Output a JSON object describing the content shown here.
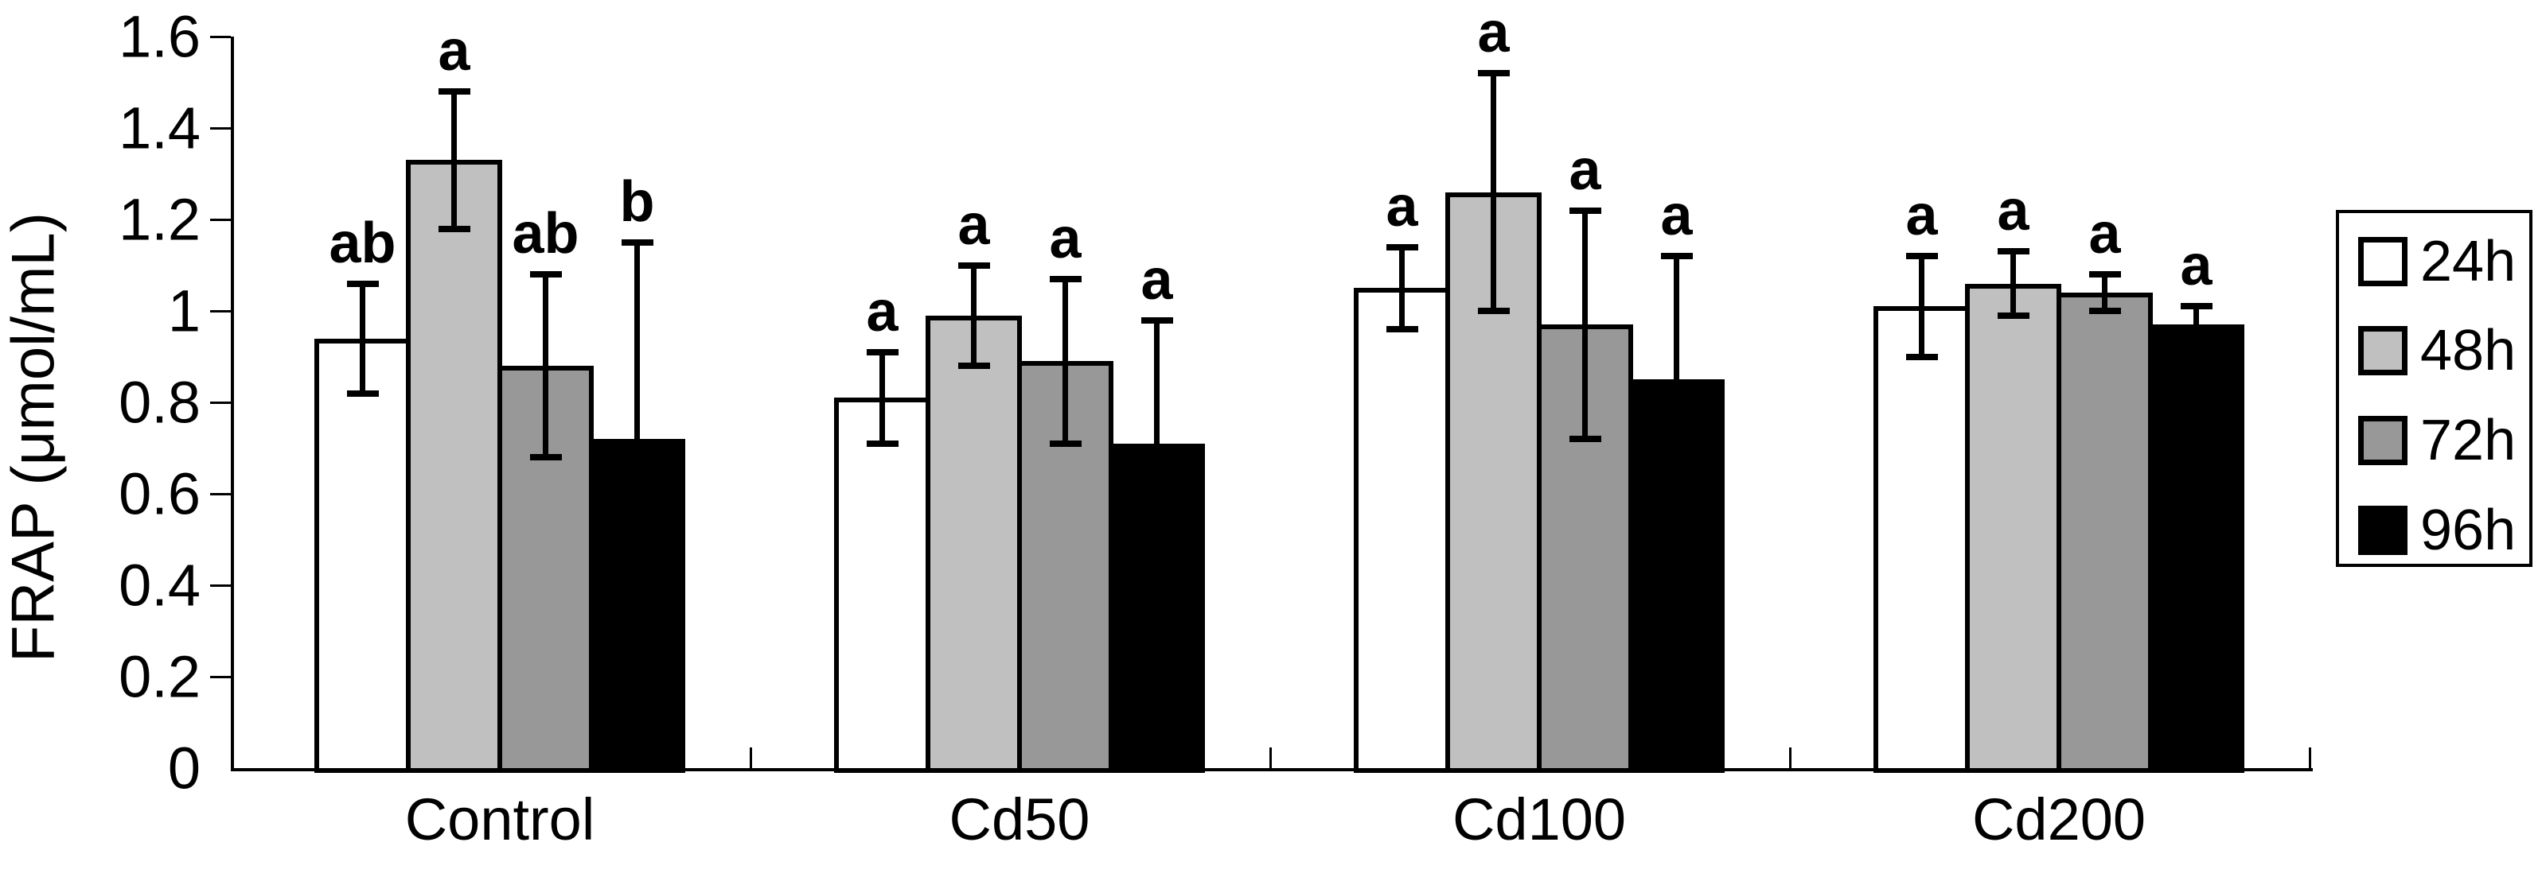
{
  "chart_data": {
    "type": "bar",
    "title": "",
    "xlabel": "",
    "ylabel": "FRAP (μmol/mL)",
    "ylim": [
      0,
      1.6
    ],
    "ytick_step": 0.2,
    "ytick_labels": [
      "0",
      "0.2",
      "0.4",
      "0.6",
      "0.8",
      "1",
      "1.2",
      "1.4",
      "1.6"
    ],
    "grid": false,
    "legend_position": "right",
    "categories": [
      "Control",
      "Cd50",
      "Cd100",
      "Cd200"
    ],
    "series": [
      {
        "name": "24h",
        "color": "#ffffff",
        "values": [
          0.94,
          0.81,
          1.05,
          1.01
        ],
        "errors": [
          0.12,
          0.1,
          0.09,
          0.11
        ],
        "letters": [
          "ab",
          "a",
          "a",
          "a"
        ]
      },
      {
        "name": "48h",
        "color": "#c0c0c0",
        "values": [
          1.33,
          0.99,
          1.26,
          1.06
        ],
        "errors": [
          0.15,
          0.11,
          0.26,
          0.07
        ],
        "letters": [
          "a",
          "a",
          "a",
          "a"
        ]
      },
      {
        "name": "72h",
        "color": "#989898",
        "values": [
          0.88,
          0.89,
          0.97,
          1.04
        ],
        "errors": [
          0.2,
          0.18,
          0.25,
          0.04
        ],
        "letters": [
          "ab",
          "a",
          "a",
          "a"
        ]
      },
      {
        "name": "96h",
        "color": "#000000",
        "values": [
          0.72,
          0.71,
          0.85,
          0.97
        ],
        "errors": [
          0.43,
          0.27,
          0.27,
          0.04
        ],
        "letters": [
          "b",
          "a",
          "a",
          "a"
        ]
      }
    ],
    "legend_entries": [
      "24h",
      "48h",
      "72h",
      "96h"
    ],
    "axis_color": "#000000",
    "background_color": "#ffffff"
  }
}
